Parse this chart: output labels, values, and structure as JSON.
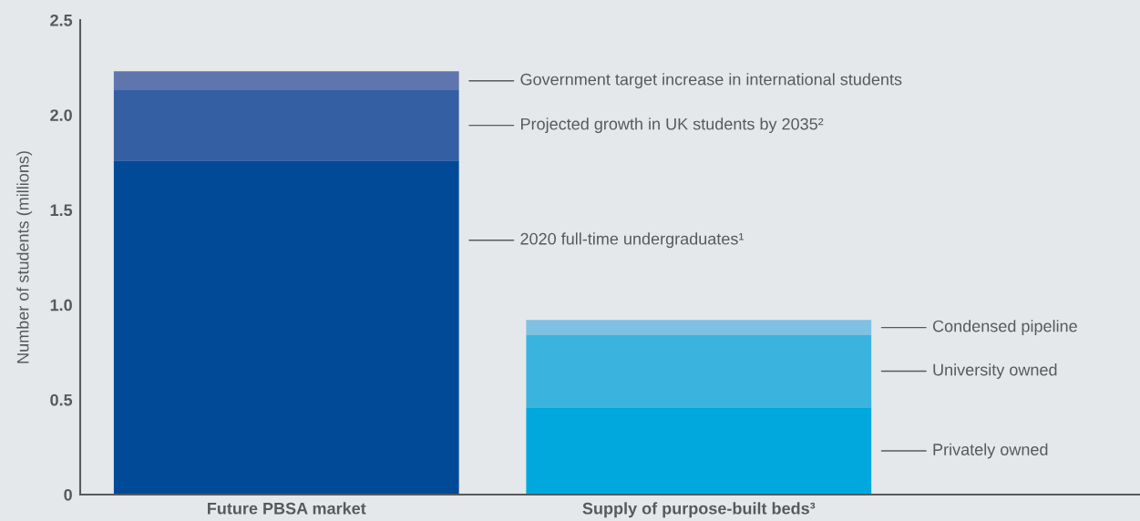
{
  "chart_data": {
    "type": "bar",
    "stacked": true,
    "ylabel": "Number of students (millions)",
    "categories": [
      "Future PBSA market",
      "Supply of purpose-built beds³"
    ],
    "series": [
      {
        "name": "2020 full-time undergraduates¹",
        "color": "#004a97",
        "values": [
          1.76,
          null
        ]
      },
      {
        "name": "Projected growth in UK students by 2035²",
        "color": "#345fa3",
        "values": [
          0.37,
          null
        ]
      },
      {
        "name": "Government target increase in international students",
        "color": "#5e75ae",
        "values": [
          0.1,
          null
        ]
      },
      {
        "name": "Privately owned",
        "color": "#00a8de",
        "values": [
          null,
          0.46
        ]
      },
      {
        "name": "University owned",
        "color": "#3bb3df",
        "values": [
          null,
          0.38
        ]
      },
      {
        "name": "Condensed pipeline",
        "color": "#7ec1e3",
        "values": [
          null,
          0.08
        ]
      }
    ],
    "ylim": [
      0,
      2.5
    ],
    "yticks": [
      0,
      0.5,
      {
        "value": 1,
        "label": "1.0"
      },
      1.5,
      {
        "value": 2,
        "label": "2.0"
      },
      2.5
    ],
    "grid": false,
    "legend": false
  }
}
